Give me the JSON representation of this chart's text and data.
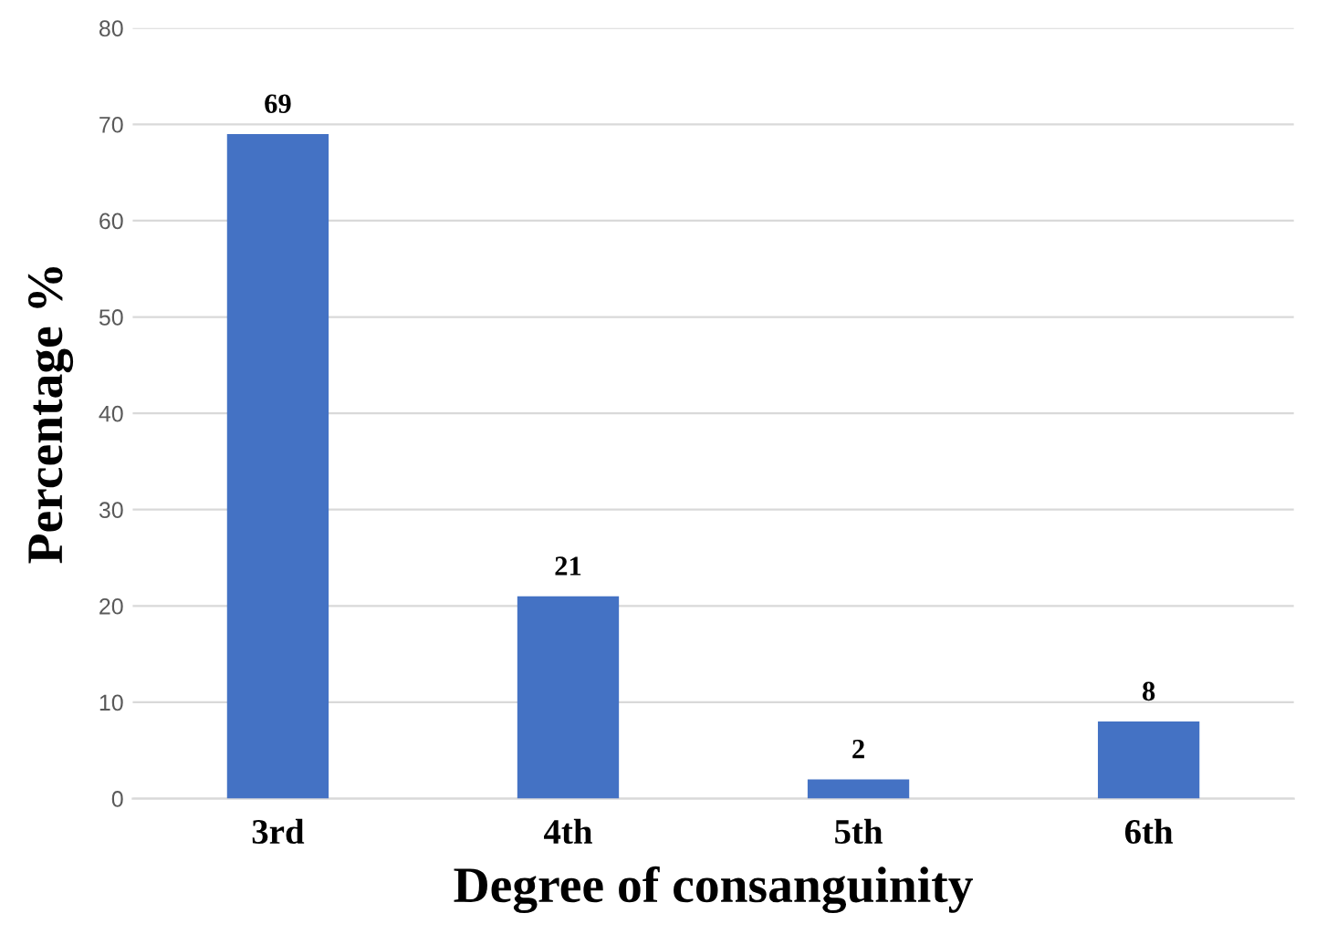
{
  "chart_data": {
    "type": "bar",
    "xlabel": "Degree of consanguinity",
    "ylabel": "Percentage %",
    "categories": [
      "3rd",
      "4th",
      "5th",
      "6th"
    ],
    "values": [
      69,
      21,
      2,
      8
    ],
    "color": "#4472c4",
    "ylim": [
      0,
      80
    ],
    "yticks": [
      0,
      10,
      20,
      30,
      40,
      50,
      60,
      70,
      80
    ],
    "grid": "y",
    "data_labels": true
  }
}
